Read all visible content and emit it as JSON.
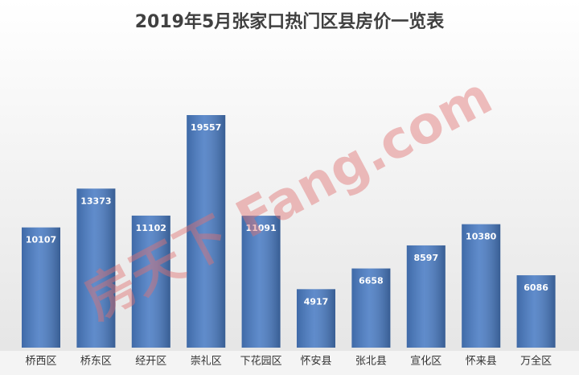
{
  "chart_data": {
    "type": "bar",
    "title": "2019年5月张家口热门区县房价一览表",
    "categories": [
      "桥西区",
      "桥东区",
      "经开区",
      "崇礼区",
      "下花园区",
      "怀安县",
      "张北县",
      "宣化区",
      "怀来县",
      "万全区"
    ],
    "values": [
      10107,
      13373,
      11102,
      19557,
      11091,
      4917,
      6658,
      8597,
      10380,
      6086
    ],
    "color": "#4a7cc4",
    "watermark": "房天下 Fang.com"
  }
}
